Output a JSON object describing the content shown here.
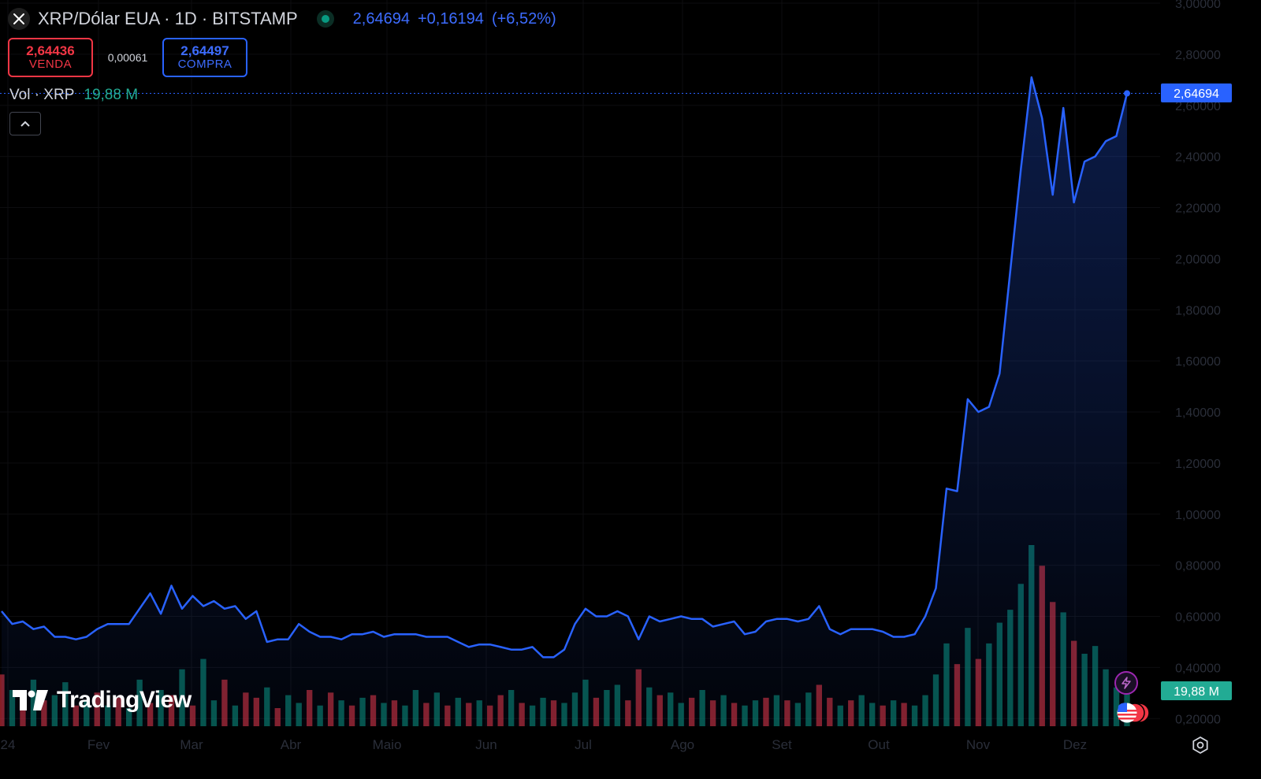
{
  "header": {
    "symbol_title": "XRP/Dólar EUA · 1D · BITSTAMP",
    "last_price": "2,64694",
    "change": "+0,16194",
    "change_pct": "(+6,52%)",
    "up_color": "#3d6cff",
    "live_color": "#089981",
    "symbol_icon": "x-icon"
  },
  "trade": {
    "sell_price": "2,64436",
    "sell_label": "VENDA",
    "spread": "0,00061",
    "buy_price": "2,64497",
    "buy_label": "COMPRA"
  },
  "volume_indicator": {
    "label": "Vol · XRP",
    "value": "19,88 M"
  },
  "price_label": "2,64694",
  "volume_label": "19,88 M",
  "brand": {
    "name": "TradingView"
  },
  "chart_data": {
    "type": "area",
    "x_ticks": [
      "24",
      "Fev",
      "Mar",
      "Abr",
      "Maio",
      "Jun",
      "Jul",
      "Ago",
      "Set",
      "Out",
      "Nov",
      "Dez"
    ],
    "y_ticks": [
      "3,00000",
      "2,80000",
      "2,60000",
      "2,40000",
      "2,20000",
      "2,00000",
      "1,80000",
      "1,60000",
      "1,40000",
      "1,20000",
      "1,00000",
      "0,80000",
      "0,60000",
      "0,40000",
      "0,20000"
    ],
    "ylim": [
      0.17,
      3.0
    ],
    "grid": true,
    "line_color": "#2962ff",
    "series": [
      {
        "values": [
          0.62,
          0.57,
          0.58,
          0.55,
          0.56,
          0.52,
          0.52,
          0.51,
          0.52,
          0.55,
          0.57,
          0.57,
          0.57,
          0.63,
          0.69,
          0.61,
          0.72,
          0.63,
          0.68,
          0.64,
          0.66,
          0.63,
          0.64,
          0.59,
          0.62,
          0.5,
          0.51,
          0.51,
          0.57,
          0.54,
          0.52,
          0.52,
          0.51,
          0.53,
          0.53,
          0.54,
          0.52,
          0.53,
          0.53,
          0.53,
          0.52,
          0.52,
          0.52,
          0.5,
          0.48,
          0.49,
          0.49,
          0.48,
          0.47,
          0.47,
          0.48,
          0.44,
          0.44,
          0.47,
          0.57,
          0.63,
          0.6,
          0.6,
          0.62,
          0.6,
          0.51,
          0.6,
          0.58,
          0.59,
          0.6,
          0.59,
          0.59,
          0.56,
          0.57,
          0.58,
          0.53,
          0.54,
          0.58,
          0.59,
          0.59,
          0.58,
          0.59,
          0.64,
          0.55,
          0.53,
          0.55,
          0.55,
          0.55,
          0.54,
          0.52,
          0.52,
          0.53,
          0.6,
          0.71,
          1.1,
          1.09,
          1.45,
          1.4,
          1.42,
          1.55,
          1.95,
          2.35,
          2.71,
          2.55,
          2.25,
          2.59,
          2.22,
          2.38,
          2.4,
          2.46,
          2.48,
          2.64694
        ],
        "volume": [
          20,
          14,
          9,
          18,
          10,
          12,
          17,
          8,
          10,
          13,
          8,
          11,
          7,
          18,
          9,
          14,
          12,
          22,
          8,
          26,
          10,
          18,
          8,
          13,
          11,
          15,
          7,
          12,
          9,
          14,
          8,
          13,
          10,
          8,
          11,
          12,
          9,
          10,
          8,
          14,
          9,
          13,
          8,
          11,
          9,
          10,
          8,
          12,
          14,
          9,
          8,
          11,
          10,
          9,
          13,
          18,
          11,
          14,
          16,
          10,
          22,
          15,
          12,
          13,
          9,
          11,
          14,
          10,
          12,
          9,
          8,
          10,
          11,
          12,
          10,
          9,
          13,
          16,
          11,
          8,
          10,
          12,
          9,
          8,
          10,
          9,
          8,
          12,
          20,
          32,
          24,
          38,
          26,
          32,
          40,
          45,
          55,
          70,
          62,
          48,
          44,
          33,
          28,
          31,
          22,
          15,
          20
        ],
        "volume_up": [
          0,
          1,
          0,
          1,
          0,
          1,
          1,
          0,
          1,
          0,
          1,
          0,
          1,
          1,
          0,
          1,
          0,
          1,
          0,
          1,
          1,
          0,
          1,
          0,
          0,
          1,
          0,
          1,
          1,
          0,
          1,
          0,
          1,
          0,
          1,
          0,
          1,
          0,
          1,
          1,
          0,
          1,
          0,
          1,
          0,
          1,
          0,
          0,
          1,
          0,
          1,
          1,
          0,
          1,
          1,
          1,
          0,
          1,
          1,
          0,
          0,
          1,
          0,
          1,
          1,
          0,
          1,
          0,
          1,
          0,
          1,
          1,
          0,
          1,
          0,
          1,
          1,
          0,
          0,
          1,
          0,
          1,
          1,
          0,
          1,
          0,
          1,
          1,
          1,
          1,
          0,
          1,
          0,
          1,
          1,
          1,
          1,
          1,
          0,
          0,
          1,
          0,
          1,
          1,
          1,
          1,
          1
        ]
      }
    ]
  }
}
